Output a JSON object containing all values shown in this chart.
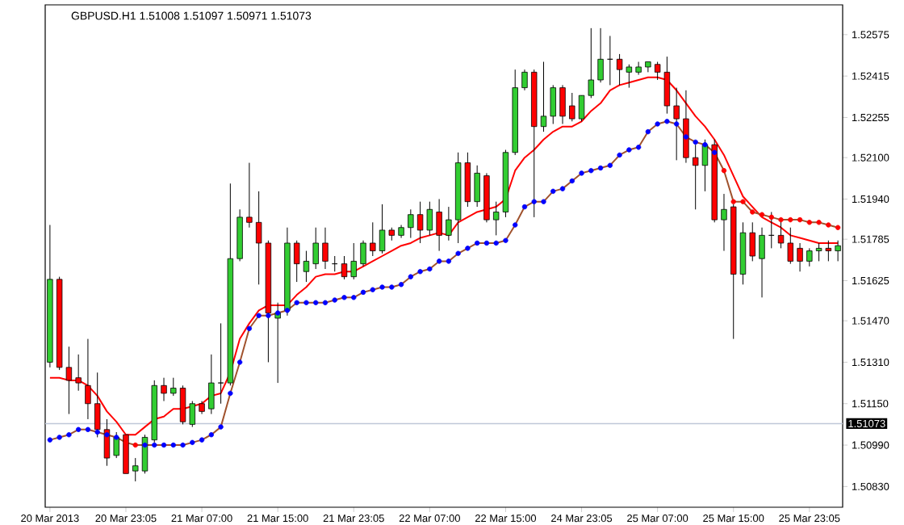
{
  "chart_data": {
    "type": "candlestick",
    "title": "GBPUSD.H1  1.51008 1.51097 1.50971 1.51073",
    "categories": [
      "20 Mar 2013",
      null,
      null,
      null,
      null,
      null,
      null,
      null,
      "20 Mar 23:05",
      null,
      null,
      null,
      null,
      null,
      null,
      null,
      "21 Mar 07:00",
      null,
      null,
      null,
      null,
      null,
      null,
      null,
      "21 Mar 15:00",
      null,
      null,
      null,
      null,
      null,
      null,
      null,
      "21 Mar 23:05",
      null,
      null,
      null,
      null,
      null,
      null,
      null,
      "22 Mar 07:00",
      null,
      null,
      null,
      null,
      null,
      null,
      null,
      "22 Mar 15:00",
      null,
      null,
      null,
      null,
      null,
      null,
      null,
      "24 Mar 23:05",
      null,
      null,
      null,
      null,
      null,
      null,
      null,
      "25 Mar 07:00",
      null,
      null,
      null,
      null,
      null,
      null,
      null,
      "25 Mar 15:00",
      null,
      null,
      null,
      null,
      null,
      null,
      null,
      "25 Mar 23:05",
      null,
      null,
      null
    ],
    "ohlc": [
      [
        1.5131,
        1.5184,
        1.5129,
        1.5163
      ],
      [
        1.5163,
        1.5164,
        1.5128,
        1.5129
      ],
      [
        1.5129,
        1.5137,
        1.5111,
        1.5124
      ],
      [
        1.5125,
        1.5134,
        1.512,
        1.5123
      ],
      [
        1.5122,
        1.514,
        1.5109,
        1.5115
      ],
      [
        1.5115,
        1.5127,
        1.5102,
        1.5105
      ],
      [
        1.5105,
        1.5109,
        1.5091,
        1.5094
      ],
      [
        1.5095,
        1.5104,
        1.5094,
        1.5102
      ],
      [
        1.5103,
        1.5103,
        1.5088,
        1.5088
      ],
      [
        1.5089,
        1.5094,
        1.5085,
        1.5091
      ],
      [
        1.5089,
        1.5103,
        1.5088,
        1.5102
      ],
      [
        1.5101,
        1.5124,
        1.51,
        1.5122
      ],
      [
        1.5122,
        1.5125,
        1.5116,
        1.5119
      ],
      [
        1.5119,
        1.5125,
        1.5118,
        1.5121
      ],
      [
        1.5121,
        1.5122,
        1.5107,
        1.5108
      ],
      [
        1.5107,
        1.5116,
        1.5106,
        1.5115
      ],
      [
        1.5115,
        1.5116,
        1.5111,
        1.5112
      ],
      [
        1.5113,
        1.5134,
        1.5111,
        1.5123
      ],
      [
        1.5123,
        1.5146,
        1.5115,
        1.5123
      ],
      [
        1.5123,
        1.52,
        1.5122,
        1.5171
      ],
      [
        1.5171,
        1.519,
        1.517,
        1.5187
      ],
      [
        1.5187,
        1.5208,
        1.5183,
        1.5185
      ],
      [
        1.5185,
        1.5197,
        1.5161,
        1.5177
      ],
      [
        1.5177,
        1.5178,
        1.5131,
        1.515
      ],
      [
        1.5148,
        1.5154,
        1.5123,
        1.515
      ],
      [
        1.5151,
        1.5183,
        1.5149,
        1.5177
      ],
      [
        1.5177,
        1.5178,
        1.5162,
        1.5169
      ],
      [
        1.5166,
        1.5174,
        1.5162,
        1.517
      ],
      [
        1.5169,
        1.5183,
        1.5167,
        1.5177
      ],
      [
        1.5177,
        1.5183,
        1.5167,
        1.517
      ],
      [
        1.5169,
        1.5172,
        1.5166,
        1.5169
      ],
      [
        1.5169,
        1.5172,
        1.5163,
        1.5164
      ],
      [
        1.5164,
        1.5177,
        1.5163,
        1.517
      ],
      [
        1.5169,
        1.5178,
        1.5168,
        1.5177
      ],
      [
        1.5177,
        1.5185,
        1.5172,
        1.5174
      ],
      [
        1.5174,
        1.5192,
        1.5173,
        1.5182
      ],
      [
        1.5182,
        1.5183,
        1.5178,
        1.518
      ],
      [
        1.518,
        1.5184,
        1.5179,
        1.5183
      ],
      [
        1.5183,
        1.519,
        1.5179,
        1.5188
      ],
      [
        1.5188,
        1.5193,
        1.5177,
        1.5182
      ],
      [
        1.5182,
        1.5193,
        1.518,
        1.519
      ],
      [
        1.5189,
        1.5194,
        1.5174,
        1.518
      ],
      [
        1.518,
        1.5191,
        1.5178,
        1.5186
      ],
      [
        1.5186,
        1.5212,
        1.5177,
        1.5208
      ],
      [
        1.5208,
        1.5212,
        1.5191,
        1.5193
      ],
      [
        1.5193,
        1.5207,
        1.5191,
        1.5204
      ],
      [
        1.5203,
        1.5204,
        1.5185,
        1.5186
      ],
      [
        1.5186,
        1.5193,
        1.518,
        1.5189
      ],
      [
        1.5189,
        1.5213,
        1.5187,
        1.5212
      ],
      [
        1.5212,
        1.5244,
        1.5211,
        1.5237
      ],
      [
        1.5237,
        1.5244,
        1.5236,
        1.5243
      ],
      [
        1.5243,
        1.5244,
        1.5187,
        1.5222
      ],
      [
        1.5222,
        1.5247,
        1.522,
        1.5226
      ],
      [
        1.5226,
        1.5238,
        1.5223,
        1.5237
      ],
      [
        1.5237,
        1.5238,
        1.5223,
        1.5226
      ],
      [
        1.523,
        1.5235,
        1.5224,
        1.5225
      ],
      [
        1.5225,
        1.5234,
        1.5224,
        1.5234
      ],
      [
        1.5234,
        1.526,
        1.5233,
        1.524
      ],
      [
        1.524,
        1.526,
        1.5239,
        1.5248
      ],
      [
        1.5248,
        1.5257,
        1.5238,
        1.5248
      ],
      [
        1.5248,
        1.525,
        1.5238,
        1.5244
      ],
      [
        1.5243,
        1.5246,
        1.5237,
        1.5245
      ],
      [
        1.5243,
        1.5247,
        1.5242,
        1.5245
      ],
      [
        1.5245,
        1.5247,
        1.5243,
        1.5247
      ],
      [
        1.5246,
        1.5247,
        1.524,
        1.5243
      ],
      [
        1.5243,
        1.5249,
        1.5227,
        1.523
      ],
      [
        1.523,
        1.5237,
        1.5209,
        1.5225
      ],
      [
        1.5225,
        1.5236,
        1.5208,
        1.521
      ],
      [
        1.521,
        1.5215,
        1.519,
        1.5207
      ],
      [
        1.5207,
        1.5217,
        1.5197,
        1.5215
      ],
      [
        1.5215,
        1.5217,
        1.5185,
        1.5186
      ],
      [
        1.5186,
        1.5196,
        1.5174,
        1.519
      ],
      [
        1.5191,
        1.5192,
        1.514,
        1.5165
      ],
      [
        1.5165,
        1.5185,
        1.5161,
        1.5181
      ],
      [
        1.5181,
        1.5185,
        1.517,
        1.5172
      ],
      [
        1.5171,
        1.5183,
        1.5156,
        1.518
      ],
      [
        1.518,
        1.5189,
        1.5175,
        1.518
      ],
      [
        1.518,
        1.5186,
        1.5175,
        1.5177
      ],
      [
        1.5177,
        1.5183,
        1.5169,
        1.517
      ],
      [
        1.5175,
        1.5177,
        1.5166,
        1.517
      ],
      [
        1.517,
        1.5175,
        1.5168,
        1.5174
      ],
      [
        1.5174,
        1.5177,
        1.517,
        1.5175
      ],
      [
        1.5175,
        1.5178,
        1.517,
        1.5174
      ],
      [
        1.5174,
        1.5178,
        1.517,
        1.5176
      ]
    ],
    "colors": [
      "#32cd32",
      "#ff0000",
      "#ff0000",
      "#ff0000",
      "#ff0000",
      "#ff0000",
      "#ff0000",
      "#32cd32",
      "#ff0000",
      "#32cd32",
      "#32cd32",
      "#32cd32",
      "#ff0000",
      "#32cd32",
      "#ff0000",
      "#32cd32",
      "#ff0000",
      "#32cd32",
      "#000000",
      "#32cd32",
      "#32cd32",
      "#ff0000",
      "#ff0000",
      "#ff0000",
      "#32cd32",
      "#32cd32",
      "#ff0000",
      "#32cd32",
      "#32cd32",
      "#ff0000",
      "#000000",
      "#ff0000",
      "#32cd32",
      "#32cd32",
      "#ff0000",
      "#32cd32",
      "#ff0000",
      "#32cd32",
      "#32cd32",
      "#ff0000",
      "#32cd32",
      "#ff0000",
      "#32cd32",
      "#32cd32",
      "#ff0000",
      "#32cd32",
      "#ff0000",
      "#32cd32",
      "#32cd32",
      "#32cd32",
      "#32cd32",
      "#ff0000",
      "#32cd32",
      "#32cd32",
      "#ff0000",
      "#ff0000",
      "#32cd32",
      "#32cd32",
      "#32cd32",
      "#000000",
      "#ff0000",
      "#32cd32",
      "#32cd32",
      "#32cd32",
      "#ff0000",
      "#ff0000",
      "#ff0000",
      "#ff0000",
      "#ff0000",
      "#32cd32",
      "#ff0000",
      "#32cd32",
      "#ff0000",
      "#32cd32",
      "#ff0000",
      "#32cd32",
      "#000000",
      "#ff0000",
      "#ff0000",
      "#ff0000",
      "#32cd32",
      "#32cd32",
      "#ff0000",
      "#32cd32"
    ],
    "series": [
      {
        "type": "line",
        "color": "#ff0000",
        "values": [
          1.5125,
          1.5125,
          1.5124,
          1.5124,
          1.5122,
          1.5118,
          1.5112,
          1.5108,
          1.5103,
          1.5103,
          1.5106,
          1.5109,
          1.511,
          1.5113,
          1.5113,
          1.5114,
          1.5115,
          1.5118,
          1.5119,
          1.5127,
          1.514,
          1.5146,
          1.5151,
          1.5153,
          1.5153,
          1.5153,
          1.5157,
          1.516,
          1.5164,
          1.5165,
          1.5165,
          1.5166,
          1.5166,
          1.5168,
          1.517,
          1.5172,
          1.5174,
          1.5176,
          1.5177,
          1.5179,
          1.518,
          1.5181,
          1.518,
          1.5185,
          1.5187,
          1.5189,
          1.519,
          1.5191,
          1.5194,
          1.5205,
          1.521,
          1.5213,
          1.5217,
          1.522,
          1.5222,
          1.5222,
          1.5224,
          1.5228,
          1.5231,
          1.5236,
          1.5238,
          1.5239,
          1.524,
          1.5241,
          1.5241,
          1.524,
          1.5236,
          1.5231,
          1.5226,
          1.5222,
          1.5217,
          1.5211,
          1.5203,
          1.5195,
          1.5191,
          1.5187,
          1.5185,
          1.5183,
          1.518,
          1.5179,
          1.5178,
          1.5177,
          1.5177,
          1.5177
        ]
      },
      {
        "type": "line",
        "color": "#a0522d",
        "marker": "circle",
        "values": [
          1.5101,
          1.5102,
          1.5103,
          1.5105,
          1.5105,
          1.5104,
          1.5103,
          1.5102,
          1.51,
          1.5099,
          1.5099,
          1.5099,
          1.5099,
          1.5099,
          1.5099,
          1.51,
          1.5101,
          1.5103,
          1.5106,
          1.5119,
          1.5131,
          1.5144,
          1.5149,
          1.5149,
          1.515,
          1.5151,
          1.5154,
          1.5154,
          1.5154,
          1.5154,
          1.5155,
          1.5156,
          1.5156,
          1.5158,
          1.5159,
          1.516,
          1.516,
          1.5161,
          1.5164,
          1.5166,
          1.5167,
          1.517,
          1.517,
          1.5173,
          1.5175,
          1.5177,
          1.5177,
          1.5177,
          1.5178,
          1.5184,
          1.5191,
          1.5193,
          1.5193,
          1.5197,
          1.5198,
          1.5201,
          1.5204,
          1.5205,
          1.5206,
          1.5207,
          1.5211,
          1.5213,
          1.5214,
          1.522,
          1.5223,
          1.5224,
          1.5223,
          1.5218,
          1.5216,
          1.5215,
          1.5212,
          1.5205,
          1.5193,
          1.5193,
          1.5189,
          1.5188,
          1.5187,
          1.5186,
          1.5186,
          1.5186,
          1.5185,
          1.5185,
          1.5184,
          1.5183
        ],
        "colors": [
          "#0000ff",
          "#0000ff",
          "#0000ff",
          "#0000ff",
          "#0000ff",
          "#0000ff",
          "#0000ff",
          "#0000ff",
          "#ff0000",
          "#ff0000",
          "#0000ff",
          "#0000ff",
          "#0000ff",
          "#0000ff",
          "#0000ff",
          "#0000ff",
          "#0000ff",
          "#0000ff",
          "#0000ff",
          "#0000ff",
          "#0000ff",
          "#0000ff",
          "#0000ff",
          "#0000ff",
          "#0000ff",
          "#0000ff",
          "#0000ff",
          "#0000ff",
          "#0000ff",
          "#0000ff",
          "#0000ff",
          "#0000ff",
          "#0000ff",
          "#0000ff",
          "#0000ff",
          "#0000ff",
          "#0000ff",
          "#0000ff",
          "#0000ff",
          "#0000ff",
          "#0000ff",
          "#0000ff",
          "#0000ff",
          "#0000ff",
          "#0000ff",
          "#0000ff",
          "#0000ff",
          "#0000ff",
          "#0000ff",
          "#0000ff",
          "#0000ff",
          "#0000ff",
          "#0000ff",
          "#0000ff",
          "#0000ff",
          "#0000ff",
          "#0000ff",
          "#0000ff",
          "#0000ff",
          "#0000ff",
          "#0000ff",
          "#0000ff",
          "#0000ff",
          "#0000ff",
          "#0000ff",
          "#0000ff",
          "#0000ff",
          "#0000ff",
          "#0000ff",
          "#0000ff",
          "#0000ff",
          "#ff0000",
          "#ff0000",
          "#ff0000",
          "#ff0000",
          "#ff0000",
          "#ff0000",
          "#ff0000",
          "#ff0000",
          "#ff0000",
          "#ff0000",
          "#ff0000",
          "#ff0000",
          "#ff0000"
        ]
      }
    ],
    "ylim": [
      1.5075,
      1.5269
    ],
    "yticks": [
      {
        "value": 1.5083,
        "label": "1.50830"
      },
      {
        "value": 1.5099,
        "label": "1.50990"
      },
      {
        "value": 1.5115,
        "label": "1.51150"
      },
      {
        "value": 1.5131,
        "label": "1.51310"
      },
      {
        "value": 1.5147,
        "label": "1.51470"
      },
      {
        "value": 1.51625,
        "label": "1.51625"
      },
      {
        "value": 1.51785,
        "label": "1.51785"
      },
      {
        "value": 1.5194,
        "label": "1.51940"
      },
      {
        "value": 1.521,
        "label": "1.52100"
      },
      {
        "value": 1.52255,
        "label": "1.52255"
      },
      {
        "value": 1.52415,
        "label": "1.52415"
      },
      {
        "value": 1.52575,
        "label": "1.52575"
      }
    ],
    "ref_lines": [
      {
        "axis": "y",
        "value": 1.51073,
        "label": "1.51073",
        "color": "#c0c8d8"
      }
    ]
  }
}
